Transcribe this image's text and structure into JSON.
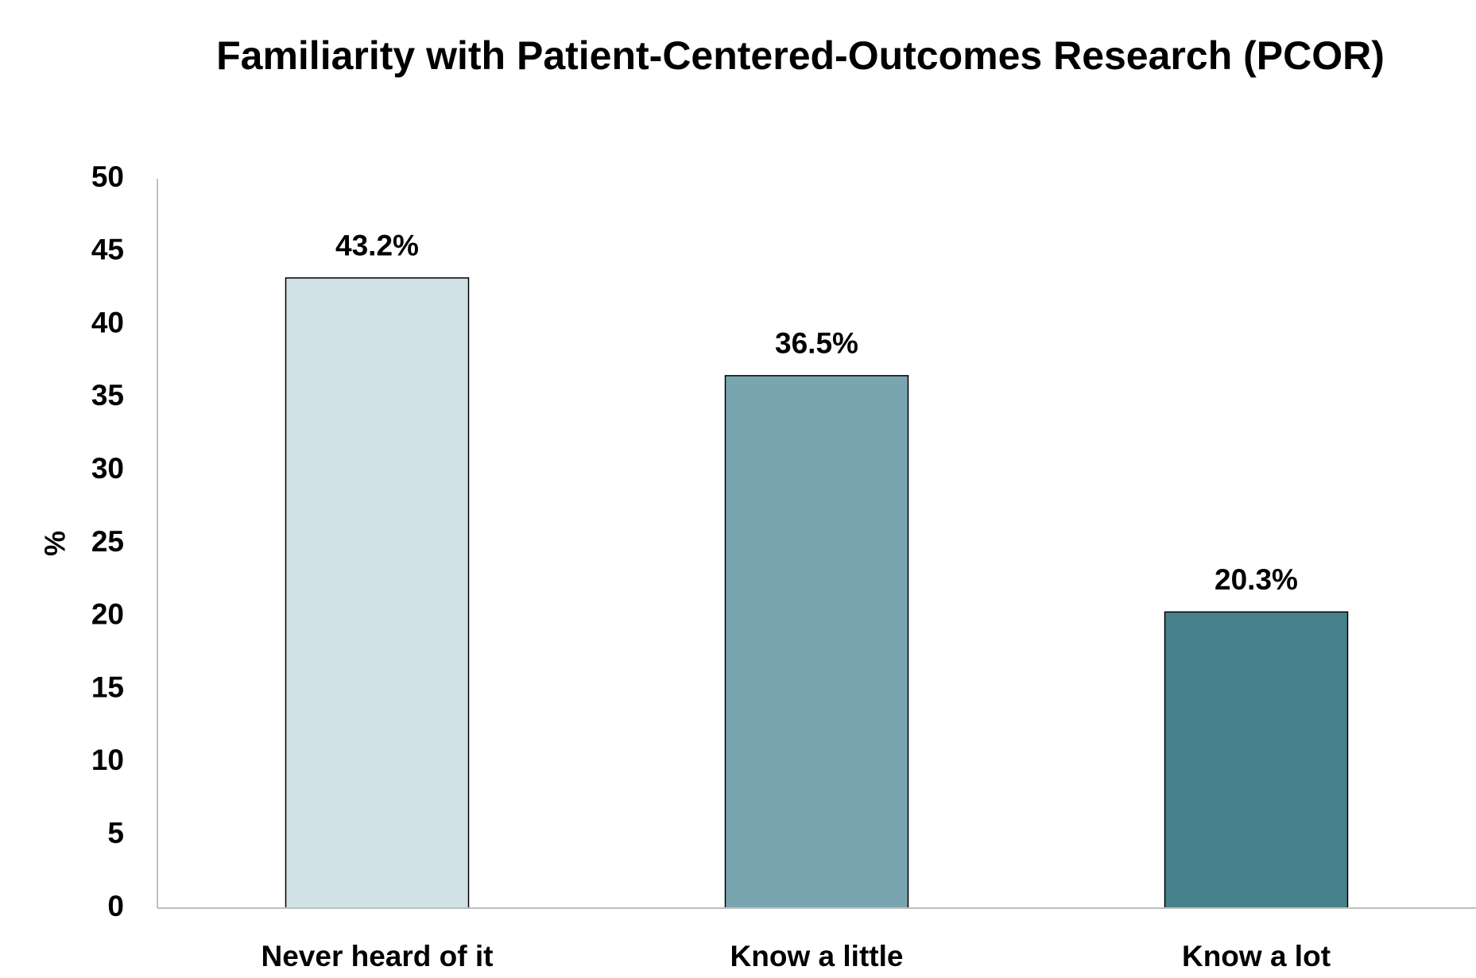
{
  "chart_data": {
    "type": "bar",
    "title": "Familiarity with Patient-Centered-Outcomes Research (PCOR)",
    "y_label": "%",
    "categories": [
      "Never heard of it",
      "Know a little",
      "Know a lot"
    ],
    "values": [
      43.2,
      36.5,
      20.3
    ],
    "value_labels": [
      "43.2%",
      "36.5%",
      "20.3%"
    ],
    "colors": [
      "#d1e1e6",
      "#79a5b1",
      "#47818c"
    ],
    "ylim": [
      0,
      50
    ],
    "yticks": [
      0,
      5,
      10,
      15,
      20,
      25,
      30,
      35,
      40,
      45,
      50
    ],
    "grid": false
  }
}
